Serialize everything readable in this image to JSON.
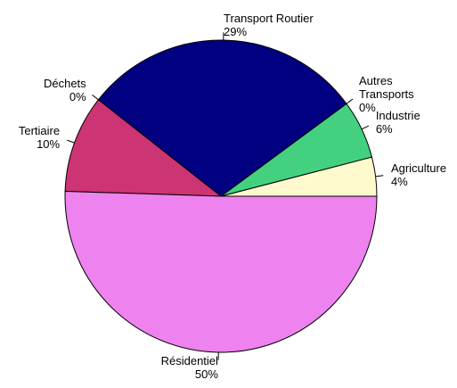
{
  "chart_data": {
    "type": "pie",
    "categories": [
      "Agriculture",
      "Industrie",
      "Autres\nTransports",
      "Transport Routier",
      "Déchets",
      "Tertiaire",
      "Résidentiel"
    ],
    "values": [
      4,
      6,
      0,
      29,
      0,
      10,
      50
    ],
    "value_labels": [
      "4%",
      "6%",
      "0%",
      "29%",
      "0%",
      "10%",
      "50%"
    ],
    "colors": [
      "#fffacd",
      "#43d17f",
      null,
      "#000080",
      null,
      "#cd3473",
      "#ee82ee"
    ]
  }
}
